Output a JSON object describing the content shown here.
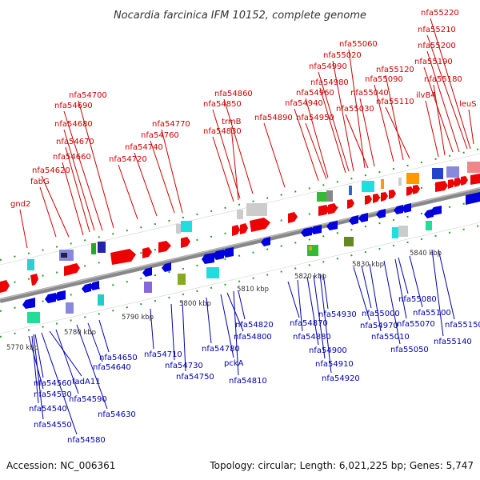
{
  "title": "Nocardia farcinica IFM 10152, complete genome",
  "accession": "Accession: NC_006361",
  "topology": "Topology: circular; Length: 6,021,225 bp; Genes: 5,747",
  "colors": {
    "forward_label": "#cc0000",
    "reverse_label": "#0000aa",
    "genome_line": "#888888",
    "forward_gene": "#ee0000",
    "reverse_gene": "#0000dd"
  },
  "ticks": [
    "5770 kbp",
    "5780 kbp",
    "5790 kbp",
    "5800 kbp",
    "5810 kbp",
    "5820 kbp",
    "5830 kbp",
    "5840 kbp"
  ],
  "forward_labels": [
    "gnd2",
    "fabG",
    "nfa54620",
    "nfa54660",
    "nfa54670",
    "nfa54680",
    "nfa54690",
    "nfa54700",
    "nfa54720",
    "nfa54740",
    "nfa54760",
    "nfa54770",
    "nfa54830",
    "trmB",
    "nfa54850",
    "nfa54860",
    "nfa54890",
    "nfa54950",
    "nfa54940",
    "nfa54960",
    "nfa54980",
    "nfa54990",
    "nfa55020",
    "nfa55060",
    "nfa55030",
    "nfa55040",
    "nfa55090",
    "nfa55120",
    "nfa55110",
    "nfa55180",
    "ilvB4",
    "nfa55190",
    "nfa55200",
    "nfa55210",
    "nfa55220",
    "leuS"
  ],
  "reverse_labels": [
    "nfa54530",
    "nfa54540",
    "nfa54550",
    "nfa54560",
    "nfa54580",
    "fadA11",
    "nfa54590",
    "nfa54630",
    "nfa54640",
    "nfa54650",
    "nfa54710",
    "nfa54730",
    "nfa54750",
    "nfa54780",
    "pckA",
    "nfa54800",
    "nfa54810",
    "nfa54820",
    "nfa54870",
    "nfa54880",
    "nfa54900",
    "nfa54910",
    "nfa54920",
    "nfa54930",
    "nfa54970",
    "nfa55000",
    "nfa55010",
    "nfa55050",
    "nfa55070",
    "nfa55080",
    "nfa55100",
    "nfa55140",
    "nfa55150"
  ]
}
